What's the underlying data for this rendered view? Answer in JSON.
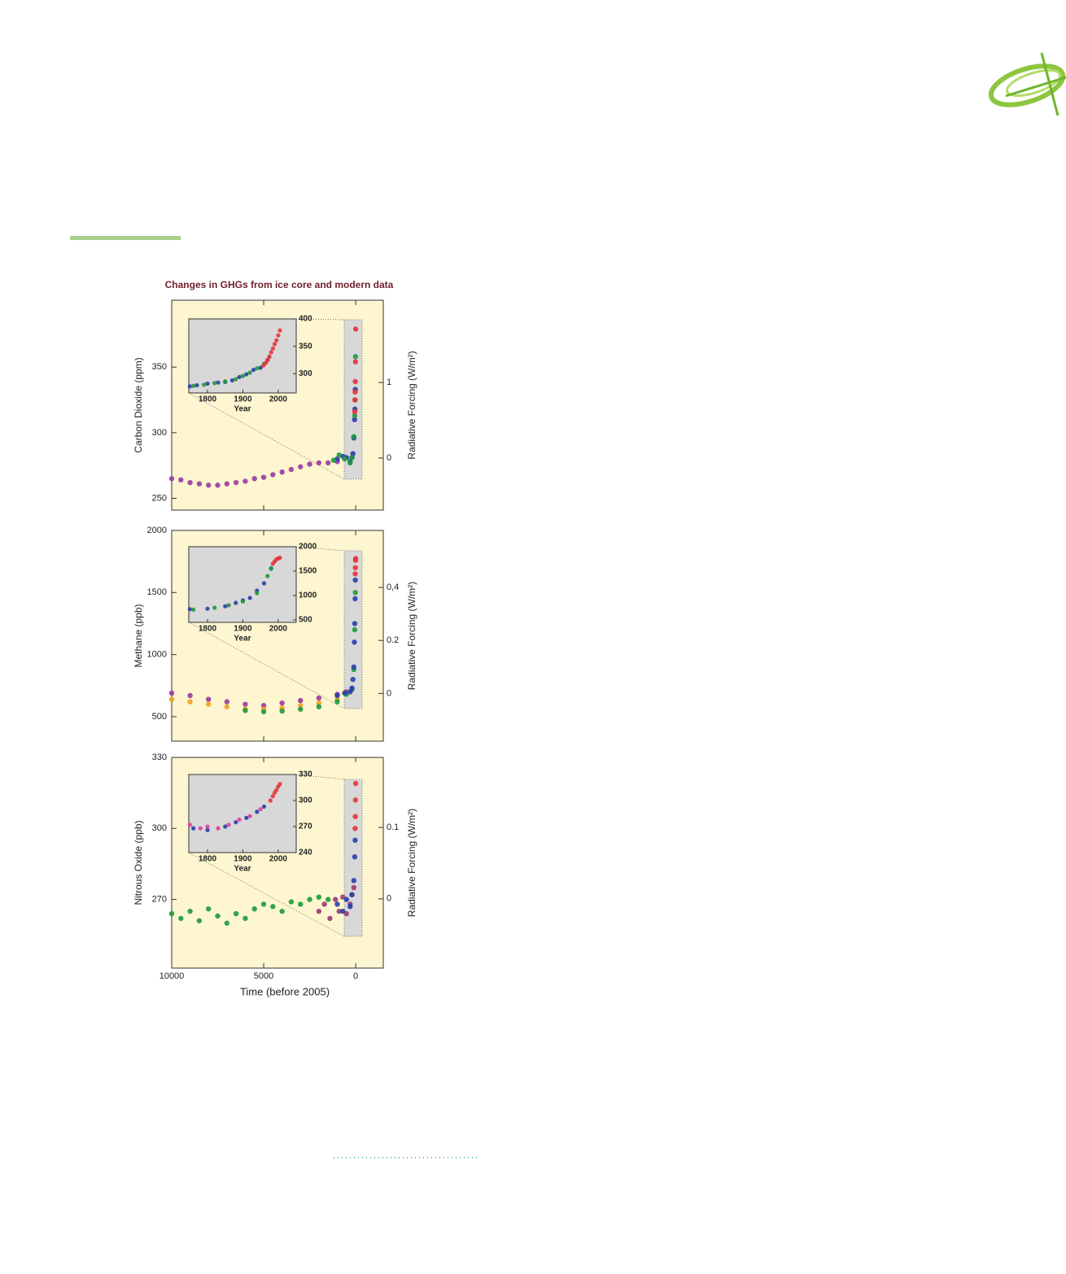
{
  "chart_data": [
    {
      "type": "scatter",
      "title": "Changes in GHGs from ice core and modern data",
      "ylabel": "Carbon Dioxide (ppm)",
      "y2label": "Radiative Forcing (W/m²)",
      "xlim": [
        10000,
        -1500
      ],
      "ylim": [
        241,
        401
      ],
      "yticks": [
        250,
        300,
        350
      ],
      "y2lim": [
        -0.69,
        2.09
      ],
      "y2ticks": [
        0,
        1
      ],
      "series": [
        {
          "color": "#9a3aa0",
          "x": [
            10000,
            9500,
            9000,
            8500,
            8000,
            7500,
            7000,
            6500,
            6000,
            5500,
            5000,
            4500,
            4000,
            3500,
            3000,
            2500,
            2000,
            1500,
            1000
          ],
          "values": [
            265,
            264,
            262,
            261,
            260,
            260,
            261,
            262,
            263,
            265,
            266,
            268,
            270,
            272,
            274,
            276,
            277,
            277,
            278
          ]
        },
        {
          "color": "#2b3ea8",
          "x": [
            1000,
            700,
            500,
            300,
            200,
            150,
            100,
            60,
            40,
            20
          ],
          "values": [
            280,
            282,
            281,
            278,
            281,
            284,
            296,
            310,
            318,
            333
          ]
        },
        {
          "color": "#1e9a3a",
          "x": [
            1200,
            900,
            600,
            300,
            200,
            100,
            50,
            30,
            10
          ],
          "values": [
            279,
            283,
            280,
            277,
            281,
            297,
            313,
            325,
            358
          ]
        },
        {
          "color": "#e8343a",
          "x": [
            47,
            40,
            30,
            20,
            10,
            0
          ],
          "values": [
            316,
            325,
            331,
            339,
            354,
            379
          ]
        }
      ]
    },
    {
      "type": "scatter",
      "xlabel": "Year",
      "xlim": [
        1747,
        2051
      ],
      "ylim": [
        265,
        400
      ],
      "xticks": [
        1800,
        1900,
        2000
      ],
      "yticks": [
        300,
        350,
        400
      ],
      "series": [
        {
          "color": "#2b3ea8",
          "x": [
            1750,
            1770,
            1800,
            1830,
            1850,
            1870,
            1890,
            1910,
            1930,
            1950,
            1970
          ],
          "values": [
            277,
            279,
            282,
            284,
            285,
            288,
            294,
            299,
            307,
            311,
            325
          ]
        },
        {
          "color": "#1e9a3a",
          "x": [
            1760,
            1790,
            1820,
            1850,
            1880,
            1900,
            1920,
            1940,
            1960,
            1975
          ],
          "values": [
            278,
            280,
            283,
            286,
            290,
            296,
            302,
            310,
            318,
            331
          ]
        },
        {
          "color": "#e8343a",
          "x": [
            1958,
            1965,
            1970,
            1975,
            1980,
            1985,
            1990,
            1995,
            2000,
            2005
          ],
          "values": [
            315,
            320,
            325,
            331,
            339,
            346,
            354,
            361,
            370,
            379
          ]
        }
      ]
    },
    {
      "type": "scatter",
      "ylabel": "Methane (ppb)",
      "y2label": "Radiative Forcing (W/m²)",
      "xlim": [
        10000,
        -1500
      ],
      "ylim": [
        303,
        2000
      ],
      "yticks": [
        500,
        1000,
        1500,
        2000
      ],
      "y2lim": [
        -0.18,
        0.615
      ],
      "y2ticks": [
        0,
        0.2,
        {
          "value": 0.4,
          "label": "0,4"
        }
      ],
      "series": [
        {
          "color": "#9a3aa0",
          "x": [
            10000,
            9000,
            8000,
            7000,
            6000,
            5000,
            4000,
            3000,
            2000,
            1000,
            500
          ],
          "values": [
            690,
            670,
            640,
            620,
            600,
            590,
            610,
            630,
            650,
            680,
            700
          ]
        },
        {
          "color": "#f0a020",
          "x": [
            10000,
            9000,
            8000,
            7000,
            6000,
            5000,
            4000,
            3000,
            2000,
            1000
          ],
          "values": [
            640,
            620,
            600,
            580,
            560,
            560,
            570,
            590,
            610,
            640
          ]
        },
        {
          "color": "#1e9a3a",
          "x": [
            6000,
            5000,
            4000,
            3000,
            2000,
            1000,
            500,
            200,
            100,
            50,
            20
          ],
          "values": [
            550,
            540,
            545,
            560,
            580,
            620,
            680,
            720,
            880,
            1200,
            1500
          ]
        },
        {
          "color": "#2b3ea8",
          "x": [
            1000,
            600,
            300,
            200,
            150,
            100,
            70,
            50,
            30,
            20
          ],
          "values": [
            670,
            690,
            700,
            730,
            800,
            900,
            1100,
            1250,
            1450,
            1600
          ]
        },
        {
          "color": "#e8343a",
          "x": [
            25,
            15,
            5,
            0
          ],
          "values": [
            1650,
            1700,
            1760,
            1774
          ]
        }
      ]
    },
    {
      "type": "scatter",
      "xlabel": "Year",
      "xlim": [
        1747,
        2051
      ],
      "ylim": [
        450,
        2000
      ],
      "xticks": [
        1800,
        1900,
        2000
      ],
      "yticks": [
        500,
        1000,
        1500,
        2000
      ],
      "series": [
        {
          "color": "#2b3ea8",
          "x": [
            1750,
            1800,
            1850,
            1880,
            1900,
            1920,
            1940,
            1960,
            1980
          ],
          "values": [
            720,
            730,
            780,
            850,
            900,
            950,
            1100,
            1250,
            1550
          ]
        },
        {
          "color": "#1e9a3a",
          "x": [
            1760,
            1820,
            1860,
            1900,
            1940,
            1970,
            1980
          ],
          "values": [
            710,
            750,
            800,
            880,
            1050,
            1400,
            1560
          ]
        },
        {
          "color": "#e8343a",
          "x": [
            1985,
            1990,
            1995,
            2000,
            2005
          ],
          "values": [
            1650,
            1700,
            1740,
            1760,
            1774
          ]
        }
      ]
    },
    {
      "type": "scatter",
      "ylabel": "Nitrous Oxide (ppb)",
      "y2label": "Radiative Forcing (W/m²)",
      "xlabel": "Time (before 2005)",
      "xlim": [
        10000,
        -1500
      ],
      "ylim": [
        241,
        330
      ],
      "xticks": [
        10000,
        5000,
        0
      ],
      "yticks": [
        270,
        300,
        330
      ],
      "y2lim": [
        -0.097,
        0.198
      ],
      "y2ticks": [
        0,
        0.1
      ],
      "series": [
        {
          "color": "#1e9a3a",
          "x": [
            10000,
            9500,
            9000,
            8500,
            8000,
            7500,
            7000,
            6500,
            6000,
            5500,
            5000,
            4500,
            4000,
            3500,
            3000,
            2500,
            2000,
            1500
          ],
          "values": [
            264,
            262,
            265,
            261,
            266,
            263,
            260,
            264,
            262,
            266,
            268,
            267,
            265,
            269,
            268,
            270,
            271,
            270
          ]
        },
        {
          "color": "#9a3a70",
          "x": [
            2000,
            1700,
            1400,
            1100,
            900,
            700,
            500,
            300,
            200,
            100
          ],
          "values": [
            265,
            268,
            262,
            270,
            265,
            271,
            264,
            268,
            272,
            275
          ]
        },
        {
          "color": "#2b3ea8",
          "x": [
            1000,
            700,
            500,
            300,
            200,
            100,
            50,
            30
          ],
          "values": [
            268,
            265,
            270,
            267,
            272,
            278,
            288,
            295
          ]
        },
        {
          "color": "#e8343a",
          "x": [
            30,
            20,
            10,
            0
          ],
          "values": [
            300,
            305,
            312,
            319
          ]
        }
      ]
    },
    {
      "type": "scatter",
      "xlabel": "Year",
      "xlim": [
        1747,
        2051
      ],
      "ylim": [
        240,
        330
      ],
      "xticks": [
        1800,
        1900,
        2000
      ],
      "yticks": [
        240,
        270,
        300,
        330
      ],
      "series": [
        {
          "color": "#e040a0",
          "x": [
            1750,
            1780,
            1800,
            1830,
            1860,
            1890,
            1920,
            1950
          ],
          "values": [
            272,
            268,
            270,
            268,
            272,
            278,
            282,
            290
          ]
        },
        {
          "color": "#2b3ea8",
          "x": [
            1760,
            1800,
            1850,
            1880,
            1910,
            1940,
            1960
          ],
          "values": [
            268,
            266,
            270,
            275,
            280,
            287,
            293
          ]
        },
        {
          "color": "#e8343a",
          "x": [
            1978,
            1985,
            1990,
            1995,
            2000,
            2005
          ],
          "values": [
            300,
            305,
            309,
            312,
            316,
            319
          ]
        }
      ]
    }
  ]
}
